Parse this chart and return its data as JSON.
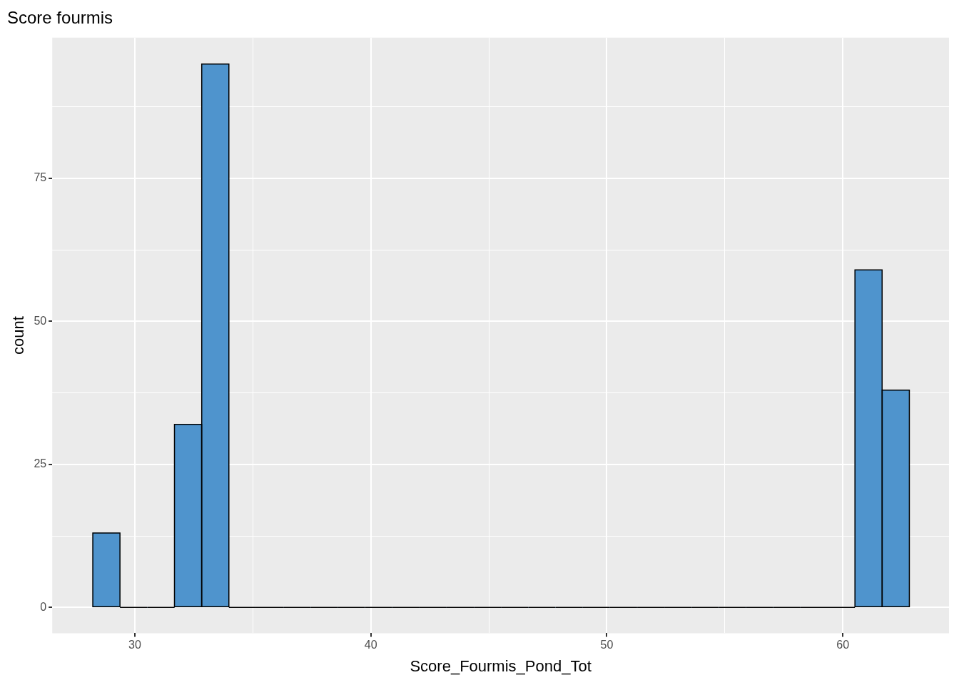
{
  "chart_data": {
    "type": "histogram",
    "title": "Score fourmis",
    "xlabel": "Score_Fourmis_Pond_Tot",
    "ylabel": "count",
    "bins": [
      28.22,
      29.37,
      30.53,
      31.68,
      32.83,
      33.99,
      35.14,
      36.29,
      37.45,
      38.6,
      39.75,
      40.91,
      42.06,
      43.21,
      44.37,
      45.52,
      46.67,
      47.83,
      48.98,
      50.13,
      51.29,
      52.44,
      53.59,
      54.75,
      55.9,
      57.05,
      58.21,
      59.36,
      60.51,
      61.67,
      62.82
    ],
    "values": [
      13,
      0,
      0,
      32,
      95,
      0,
      0,
      0,
      0,
      0,
      0,
      0,
      0,
      0,
      0,
      0,
      0,
      0,
      0,
      0,
      0,
      0,
      0,
      0,
      0,
      0,
      0,
      0,
      59,
      38
    ],
    "color": "#4f94cd",
    "xlim": [
      26.5,
      64.5
    ],
    "xticks": [
      30,
      {
        "value": 35,
        "label": null
      },
      40,
      {
        "value": 45,
        "label": null
      },
      50,
      {
        "value": 55,
        "label": null
      },
      60
    ],
    "ylim": [
      -4.5,
      99.6
    ],
    "yticks": [
      0,
      {
        "value": 12.5,
        "label": null
      },
      25,
      {
        "value": 37.5,
        "label": null
      },
      50,
      {
        "value": 62.5,
        "label": null
      },
      75,
      {
        "value": 87.5,
        "label": null
      }
    ],
    "grid": true,
    "legend": false
  }
}
